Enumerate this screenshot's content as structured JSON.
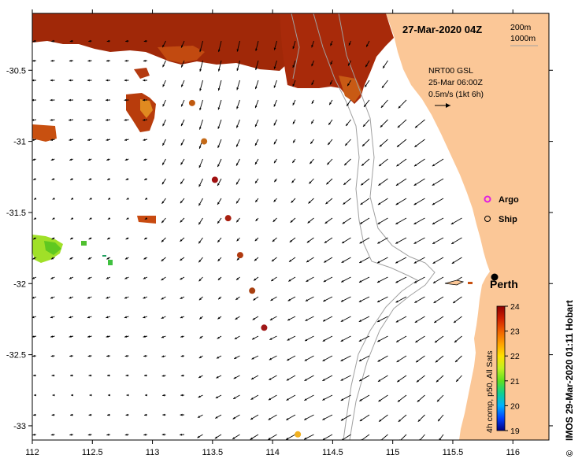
{
  "title": "27-Mar-2020 04Z",
  "depth_legend": {
    "shallow": "200m",
    "deep": "1000m"
  },
  "current_info": {
    "product": "NRT00 GSL",
    "date": "25-Mar 06:00Z",
    "scale": "0.5m/s (1kt 6h)"
  },
  "legend": {
    "argo": "Argo",
    "ship": "Ship"
  },
  "city": "Perth",
  "credit": "IMOS 29-Mar-2020 01:11 Hobart",
  "copyright": "©",
  "sst_caption": "4h comp, p50, All Sats",
  "colorbar": {
    "min": 19,
    "max": 24,
    "ticks": [
      "19",
      "20",
      "21",
      "22",
      "23",
      "24"
    ],
    "colors": [
      "#000080",
      "#0040ff",
      "#00b0ff",
      "#10d090",
      "#60e020",
      "#c0f020",
      "#ffe000",
      "#ffa000",
      "#f06000",
      "#d02000",
      "#900000"
    ]
  },
  "axes": {
    "x_ticks": [
      "112",
      "112.5",
      "113",
      "113.5",
      "114",
      "114.5",
      "115",
      "115.5",
      "116"
    ],
    "y_ticks": [
      "-30.5",
      "-31",
      "-31.5",
      "-32",
      "-32.5",
      "-33"
    ],
    "lon_range": [
      112,
      116.3
    ],
    "lat_range": [
      -30.1,
      -33.1
    ]
  },
  "colors": {
    "land": "#fbc797",
    "sst_hot": "#a02808",
    "arrow": "#000000",
    "isobath": "#a0a0a0"
  },
  "drifter_track": [
    {
      "lon": 113.33,
      "lat": -30.73,
      "color": "#c05a10"
    },
    {
      "lon": 113.43,
      "lat": -31.0,
      "color": "#c46a18"
    },
    {
      "lon": 113.52,
      "lat": -31.27,
      "color": "#a01010"
    },
    {
      "lon": 113.63,
      "lat": -31.54,
      "color": "#a82010"
    },
    {
      "lon": 113.73,
      "lat": -31.8,
      "color": "#b03a10"
    },
    {
      "lon": 113.83,
      "lat": -32.05,
      "color": "#a84010"
    },
    {
      "lon": 113.93,
      "lat": -32.31,
      "color": "#a01818"
    },
    {
      "lon": 114.21,
      "lat": -33.06,
      "color": "#f0b020"
    }
  ]
}
